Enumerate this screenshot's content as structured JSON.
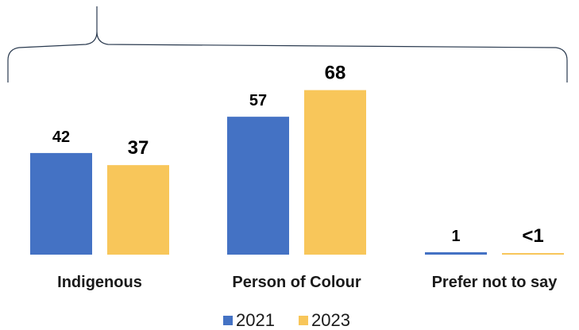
{
  "chart_data": {
    "type": "bar",
    "categories": [
      "Indigenous",
      "Person of Colour",
      "Prefer not to say"
    ],
    "series": [
      {
        "name": "2021",
        "values": [
          42,
          57,
          1
        ],
        "labels": [
          "42",
          "57",
          "1"
        ]
      },
      {
        "name": "2023",
        "values": [
          37,
          68,
          0.3
        ],
        "labels": [
          "37",
          "68",
          "<1"
        ]
      }
    ],
    "ylim": [
      0,
      80
    ],
    "legend": "bottom",
    "grid": false,
    "colors": {
      "2021": "#4472C4",
      "2023": "#F8C65A"
    }
  }
}
